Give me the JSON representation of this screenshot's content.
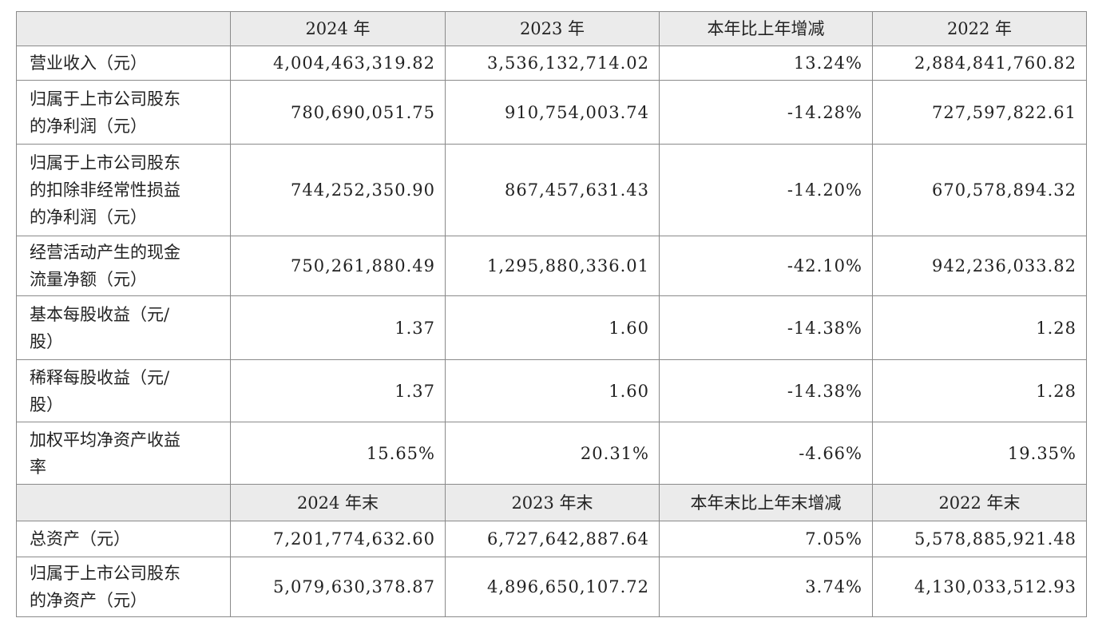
{
  "table": {
    "sections": [
      {
        "header": [
          "2024 年",
          "2023 年",
          "本年比上年增减",
          "2022 年"
        ],
        "rows": [
          {
            "label": [
              "营业收入（元）"
            ],
            "cells": [
              "4,004,463,319.82",
              "3,536,132,714.02",
              "13.24%",
              "2,884,841,760.82"
            ]
          },
          {
            "label": [
              "归属于上市公司股东",
              "的净利润（元）"
            ],
            "cells": [
              "780,690,051.75",
              "910,754,003.74",
              "-14.28%",
              "727,597,822.61"
            ]
          },
          {
            "label": [
              "归属于上市公司股东",
              "的扣除非经常性损益",
              "的净利润（元）"
            ],
            "cells": [
              "744,252,350.90",
              "867,457,631.43",
              "-14.20%",
              "670,578,894.32"
            ]
          },
          {
            "label": [
              "经营活动产生的现金",
              "流量净额（元）"
            ],
            "cells": [
              "750,261,880.49",
              "1,295,880,336.01",
              "-42.10%",
              "942,236,033.82"
            ]
          },
          {
            "label": [
              "基本每股收益（元/",
              "股）"
            ],
            "cells": [
              "1.37",
              "1.60",
              "-14.38%",
              "1.28"
            ]
          },
          {
            "label": [
              "稀释每股收益（元/",
              "股）"
            ],
            "cells": [
              "1.37",
              "1.60",
              "-14.38%",
              "1.28"
            ]
          },
          {
            "label": [
              "加权平均净资产收益",
              "率"
            ],
            "cells": [
              "15.65%",
              "20.31%",
              "-4.66%",
              "19.35%"
            ]
          }
        ]
      },
      {
        "header": [
          "2024 年末",
          "2023 年末",
          "本年末比上年末增减",
          "2022 年末"
        ],
        "rows": [
          {
            "label": [
              "总资产（元）"
            ],
            "cells": [
              "7,201,774,632.60",
              "6,727,642,887.64",
              "7.05%",
              "5,578,885,921.48"
            ]
          },
          {
            "label": [
              "归属于上市公司股东",
              "的净资产（元）"
            ],
            "cells": [
              "5,079,630,378.87",
              "4,896,650,107.72",
              "3.74%",
              "4,130,033,512.93"
            ]
          }
        ]
      }
    ]
  }
}
